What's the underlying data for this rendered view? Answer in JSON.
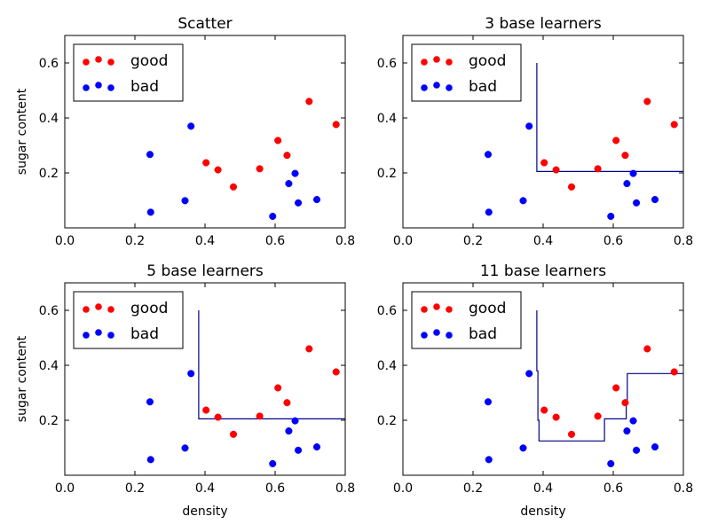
{
  "colors": {
    "good": "#ff0000",
    "bad": "#0000ff",
    "boundary": "#00008b"
  },
  "chart_data": [
    {
      "type": "scatter",
      "title": "Scatter",
      "xlabel": "",
      "ylabel": "sugar content",
      "xlim": [
        0.0,
        0.8
      ],
      "ylim": [
        0.0,
        0.7
      ],
      "xticks": [
        "0.0",
        "0.2",
        "0.4",
        "0.6",
        "0.8"
      ],
      "yticks": [
        "0.2",
        "0.4",
        "0.6"
      ],
      "legend": {
        "position": "top-left",
        "entries": [
          "good",
          "bad"
        ]
      },
      "series": [
        {
          "name": "good",
          "points": [
            [
              0.403,
              0.237
            ],
            [
              0.437,
              0.211
            ],
            [
              0.481,
              0.149
            ],
            [
              0.556,
              0.215
            ],
            [
              0.608,
              0.318
            ],
            [
              0.634,
              0.264
            ],
            [
              0.697,
              0.46
            ],
            [
              0.774,
              0.376
            ]
          ]
        },
        {
          "name": "bad",
          "points": [
            [
              0.243,
              0.267
            ],
            [
              0.245,
              0.057
            ],
            [
              0.343,
              0.099
            ],
            [
              0.36,
              0.37
            ],
            [
              0.593,
              0.042
            ],
            [
              0.639,
              0.161
            ],
            [
              0.657,
              0.198
            ],
            [
              0.666,
              0.091
            ],
            [
              0.719,
              0.103
            ]
          ]
        }
      ],
      "boundary": []
    },
    {
      "type": "scatter",
      "title": "3 base learners",
      "xlabel": "",
      "ylabel": "",
      "xlim": [
        0.0,
        0.8
      ],
      "ylim": [
        0.0,
        0.7
      ],
      "xticks": [
        "0.0",
        "0.2",
        "0.4",
        "0.6",
        "0.8"
      ],
      "yticks": [
        "0.2",
        "0.4",
        "0.6"
      ],
      "legend": {
        "position": "top-left",
        "entries": [
          "good",
          "bad"
        ]
      },
      "series": [
        {
          "name": "good",
          "points": [
            [
              0.403,
              0.237
            ],
            [
              0.437,
              0.211
            ],
            [
              0.481,
              0.149
            ],
            [
              0.556,
              0.215
            ],
            [
              0.608,
              0.318
            ],
            [
              0.634,
              0.264
            ],
            [
              0.697,
              0.46
            ],
            [
              0.774,
              0.376
            ]
          ]
        },
        {
          "name": "bad",
          "points": [
            [
              0.243,
              0.267
            ],
            [
              0.245,
              0.057
            ],
            [
              0.343,
              0.099
            ],
            [
              0.36,
              0.37
            ],
            [
              0.593,
              0.042
            ],
            [
              0.639,
              0.161
            ],
            [
              0.657,
              0.198
            ],
            [
              0.666,
              0.091
            ],
            [
              0.719,
              0.103
            ]
          ]
        }
      ],
      "boundary": [
        [
          0.382,
          0.6
        ],
        [
          0.382,
          0.205
        ],
        [
          0.8,
          0.205
        ]
      ]
    },
    {
      "type": "scatter",
      "title": "5 base learners",
      "xlabel": "density",
      "ylabel": "sugar content",
      "xlim": [
        0.0,
        0.8
      ],
      "ylim": [
        0.0,
        0.7
      ],
      "xticks": [
        "0.0",
        "0.2",
        "0.4",
        "0.6",
        "0.8"
      ],
      "yticks": [
        "0.2",
        "0.4",
        "0.6"
      ],
      "legend": {
        "position": "top-left",
        "entries": [
          "good",
          "bad"
        ]
      },
      "series": [
        {
          "name": "good",
          "points": [
            [
              0.403,
              0.237
            ],
            [
              0.437,
              0.211
            ],
            [
              0.481,
              0.149
            ],
            [
              0.556,
              0.215
            ],
            [
              0.608,
              0.318
            ],
            [
              0.634,
              0.264
            ],
            [
              0.697,
              0.46
            ],
            [
              0.774,
              0.376
            ]
          ]
        },
        {
          "name": "bad",
          "points": [
            [
              0.243,
              0.267
            ],
            [
              0.245,
              0.057
            ],
            [
              0.343,
              0.099
            ],
            [
              0.36,
              0.37
            ],
            [
              0.593,
              0.042
            ],
            [
              0.639,
              0.161
            ],
            [
              0.657,
              0.198
            ],
            [
              0.666,
              0.091
            ],
            [
              0.719,
              0.103
            ]
          ]
        }
      ],
      "boundary": [
        [
          0.382,
          0.6
        ],
        [
          0.382,
          0.205
        ],
        [
          0.8,
          0.205
        ]
      ]
    },
    {
      "type": "scatter",
      "title": "11 base learners",
      "xlabel": "density",
      "ylabel": "",
      "xlim": [
        0.0,
        0.8
      ],
      "ylim": [
        0.0,
        0.7
      ],
      "xticks": [
        "0.0",
        "0.2",
        "0.4",
        "0.6",
        "0.8"
      ],
      "yticks": [
        "0.2",
        "0.4",
        "0.6"
      ],
      "legend": {
        "position": "top-left",
        "entries": [
          "good",
          "bad"
        ]
      },
      "series": [
        {
          "name": "good",
          "points": [
            [
              0.403,
              0.237
            ],
            [
              0.437,
              0.211
            ],
            [
              0.481,
              0.149
            ],
            [
              0.556,
              0.215
            ],
            [
              0.608,
              0.318
            ],
            [
              0.634,
              0.264
            ],
            [
              0.697,
              0.46
            ],
            [
              0.774,
              0.376
            ]
          ]
        },
        {
          "name": "bad",
          "points": [
            [
              0.243,
              0.267
            ],
            [
              0.245,
              0.057
            ],
            [
              0.343,
              0.099
            ],
            [
              0.36,
              0.37
            ],
            [
              0.593,
              0.042
            ],
            [
              0.639,
              0.161
            ],
            [
              0.657,
              0.198
            ],
            [
              0.666,
              0.091
            ],
            [
              0.719,
              0.103
            ]
          ]
        }
      ],
      "boundary": [
        [
          0.382,
          0.6
        ],
        [
          0.382,
          0.38
        ],
        [
          0.385,
          0.38
        ],
        [
          0.385,
          0.2
        ],
        [
          0.388,
          0.2
        ],
        [
          0.388,
          0.125
        ],
        [
          0.575,
          0.125
        ],
        [
          0.575,
          0.205
        ],
        [
          0.637,
          0.205
        ],
        [
          0.637,
          0.265
        ],
        [
          0.64,
          0.265
        ],
        [
          0.64,
          0.37
        ],
        [
          0.8,
          0.37
        ]
      ]
    }
  ]
}
